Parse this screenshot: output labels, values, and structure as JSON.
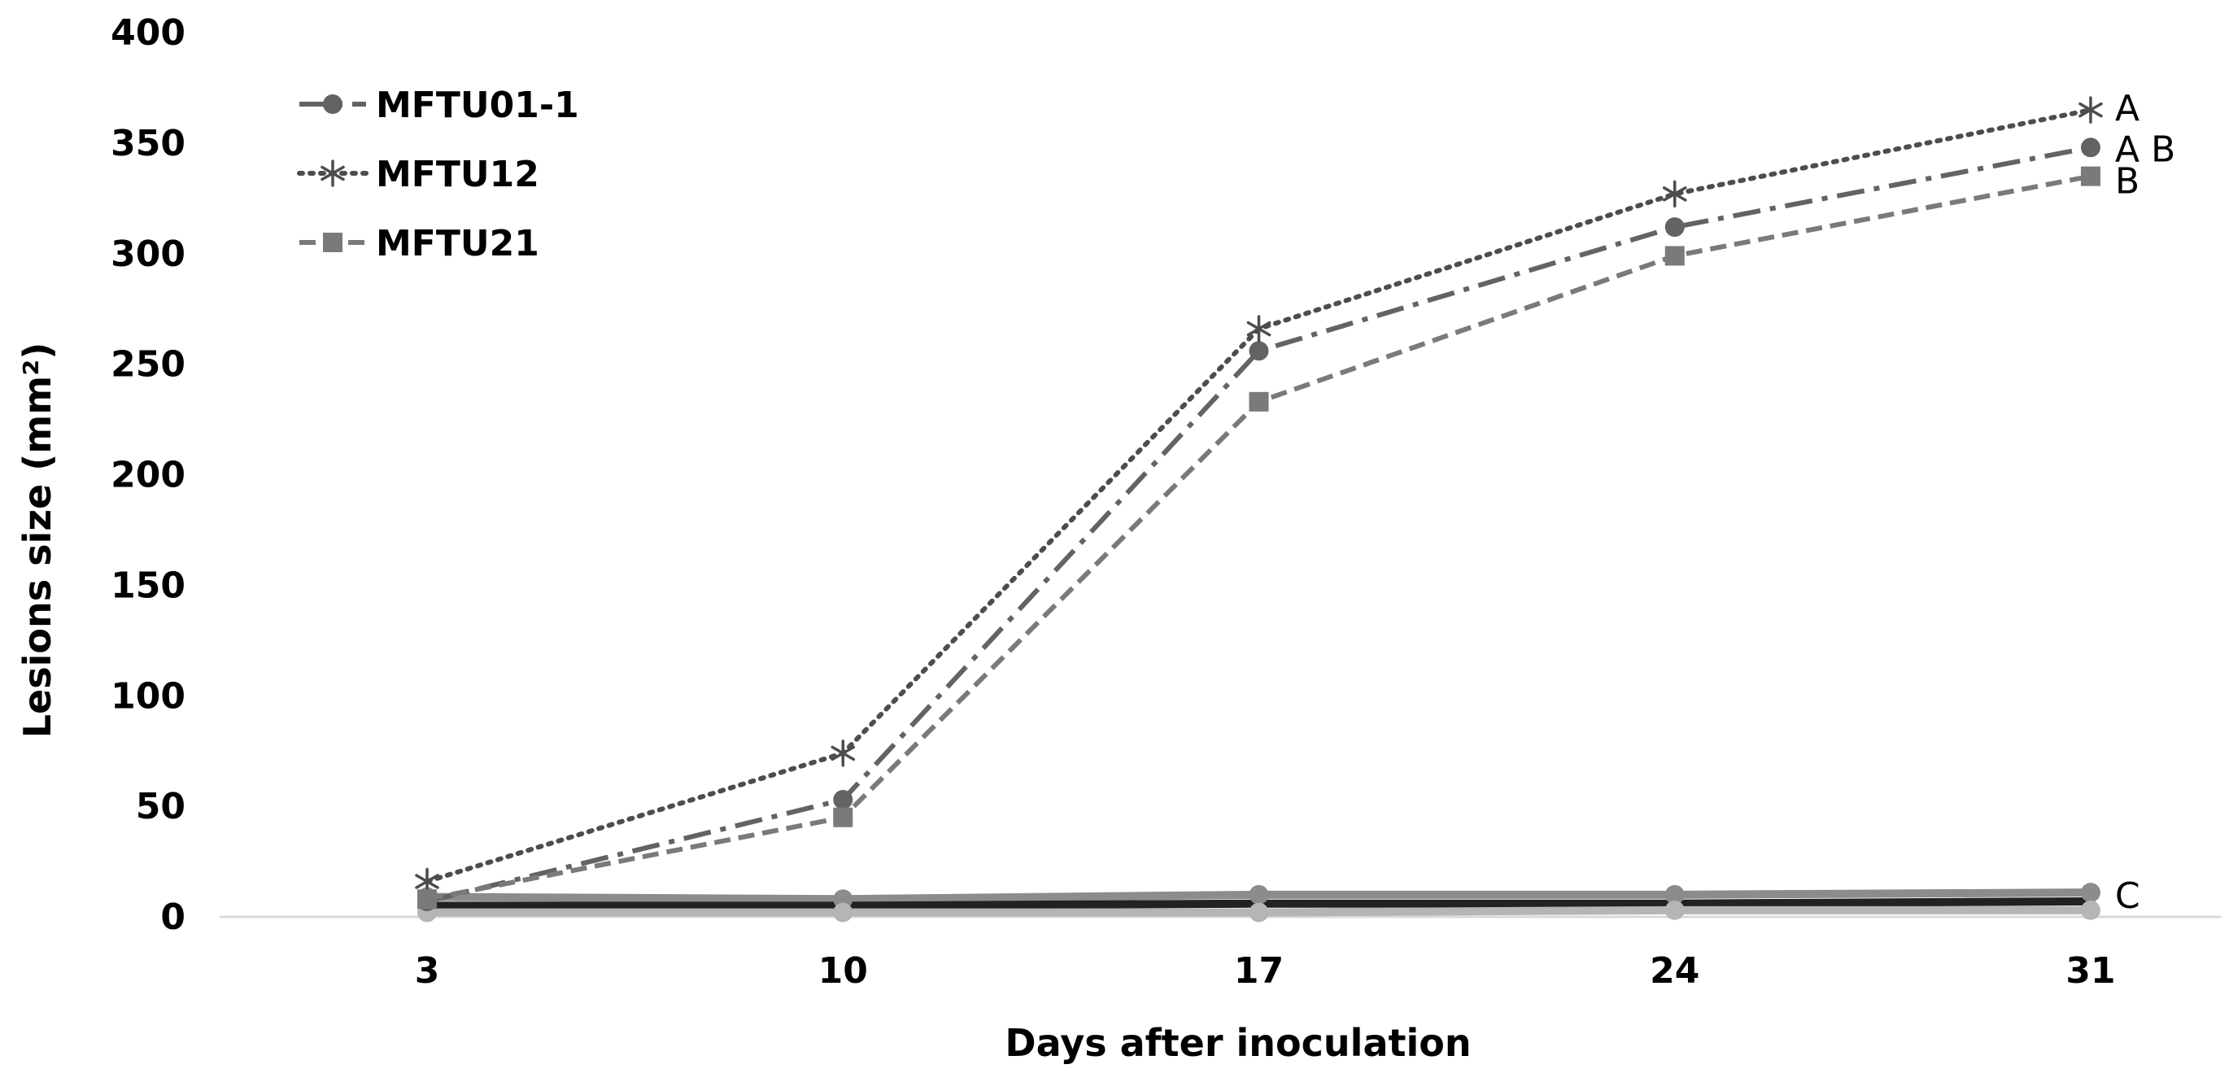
{
  "chart_data": {
    "type": "line",
    "title": "",
    "xlabel": "Days after inoculation",
    "ylabel": "Lesions size (mm²)",
    "categories": [
      "3",
      "10",
      "17",
      "24",
      "31"
    ],
    "ylim": [
      0,
      400
    ],
    "yticks": [
      "0",
      "50",
      "100",
      "150",
      "200",
      "250",
      "300",
      "350",
      "400"
    ],
    "grid": false,
    "legend_position": "top-left",
    "series": [
      {
        "name": "MFTU01-1",
        "values": [
          7,
          53,
          256,
          312,
          348
        ],
        "color": "#636363",
        "style": "dashdot",
        "marker": "circle",
        "significance": "A B",
        "in_legend": true
      },
      {
        "name": "MFTU12",
        "values": [
          16,
          74,
          266,
          327,
          365
        ],
        "color": "#4d4d4d",
        "style": "dotted",
        "marker": "asterisk",
        "significance": "A",
        "in_legend": true
      },
      {
        "name": "MFTU21",
        "values": [
          8,
          45,
          233,
          299,
          335
        ],
        "color": "#7a7a7a",
        "style": "dashed",
        "marker": "square",
        "significance": "B",
        "in_legend": true
      },
      {
        "name": "",
        "values": [
          9,
          8,
          10,
          10,
          11
        ],
        "color": "#8c8c8c",
        "style": "solid",
        "marker": "circle",
        "significance": "C",
        "in_legend": false
      },
      {
        "name": "",
        "values": [
          5,
          5,
          6,
          6,
          7
        ],
        "color": "#222222",
        "style": "solid",
        "marker": "none",
        "significance": "",
        "in_legend": false
      },
      {
        "name": "",
        "values": [
          2,
          2,
          2,
          3,
          3
        ],
        "color": "#b5b5b5",
        "style": "solid",
        "marker": "circle",
        "significance": "",
        "in_legend": false
      }
    ]
  }
}
